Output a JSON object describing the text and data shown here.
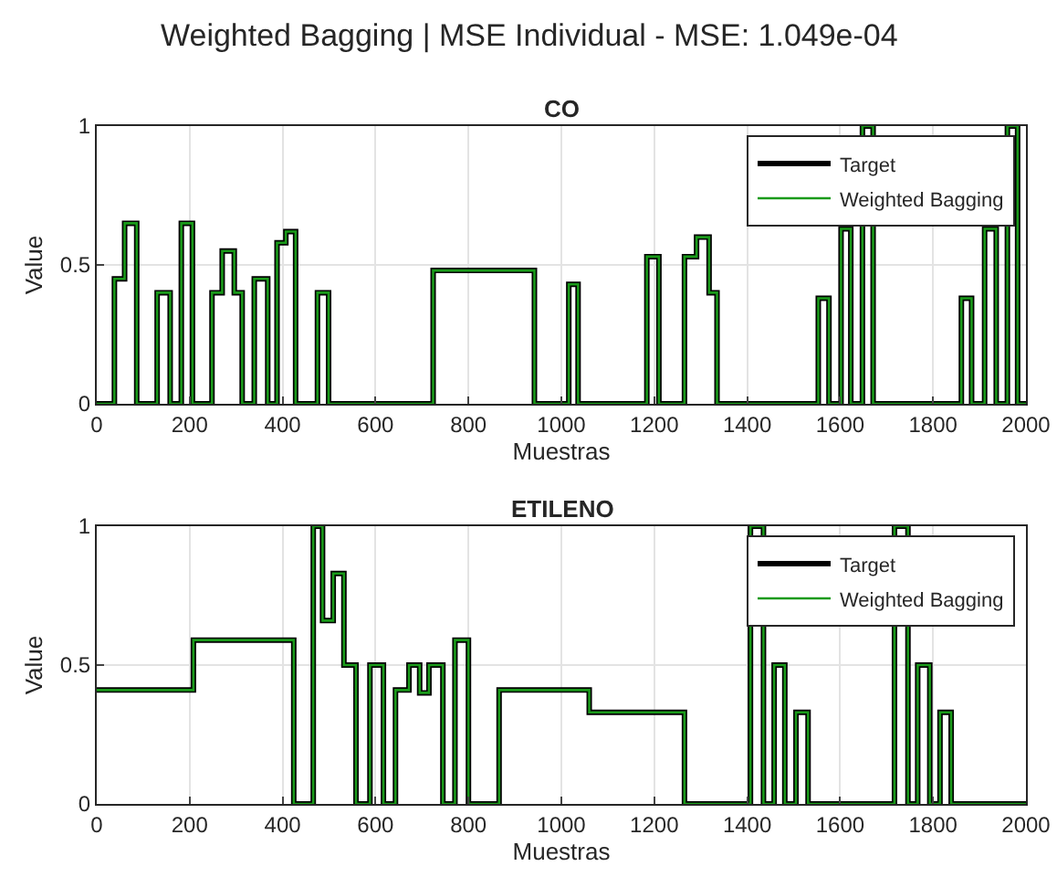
{
  "chart_data": [
    {
      "type": "step",
      "title": "Weighted Bagging | MSE Individual - MSE: 1.049e-04",
      "subtitle": "CO",
      "xlabel": "Muestras",
      "ylabel": "Value",
      "x": [
        0,
        38,
        60,
        86,
        130,
        158,
        182,
        206,
        248,
        270,
        296,
        313,
        339,
        368,
        388,
        407,
        428,
        475,
        499,
        724,
        942,
        1016,
        1036,
        1184,
        1210,
        1265,
        1291,
        1318,
        1335,
        1553,
        1576,
        1602,
        1623,
        1648,
        1671,
        1861,
        1883,
        1911,
        1936,
        1960,
        1982,
        2000
      ],
      "series": [
        {
          "name": "Target",
          "color": "#000000",
          "values": [
            0,
            0.45,
            0.65,
            0,
            0.4,
            0,
            0.65,
            0,
            0.4,
            0.55,
            0.4,
            0,
            0.45,
            0,
            0.58,
            0.62,
            0,
            0.4,
            0,
            0.48,
            0,
            0.43,
            0,
            0.53,
            0,
            0.53,
            0.6,
            0.4,
            0,
            0.38,
            0,
            0.63,
            0,
            1,
            0,
            0.38,
            0,
            0.63,
            0,
            1,
            0,
            0
          ]
        },
        {
          "name": "Weighted Bagging",
          "color": "#1a9a1a",
          "values": [
            0,
            0.45,
            0.65,
            0,
            0.4,
            0,
            0.65,
            0,
            0.4,
            0.55,
            0.4,
            0,
            0.45,
            0,
            0.58,
            0.62,
            0,
            0.4,
            0,
            0.48,
            0,
            0.43,
            0,
            0.53,
            0,
            0.53,
            0.6,
            0.4,
            0,
            0.38,
            0,
            0.63,
            0,
            1,
            0,
            0.38,
            0,
            0.63,
            0,
            1,
            0,
            0
          ]
        }
      ],
      "xlim": [
        0,
        2000
      ],
      "xticks": [
        0,
        200,
        400,
        600,
        800,
        1000,
        1200,
        1400,
        1600,
        1800,
        2000
      ],
      "ylim": [
        0,
        1
      ],
      "yticks": [
        0,
        0.5,
        1
      ],
      "grid": true,
      "legend": "top right",
      "marker": "none",
      "line_style": "solid"
    },
    {
      "type": "step",
      "title": "ETILENO",
      "xlabel": "Muestras",
      "ylabel": "Value",
      "x": [
        0,
        208,
        424,
        466,
        486,
        509,
        532,
        558,
        588,
        617,
        643,
        672,
        695,
        715,
        745,
        771,
        800,
        866,
        1060,
        1265,
        1407,
        1435,
        1458,
        1481,
        1505,
        1531,
        1717,
        1746,
        1767,
        1793,
        1815,
        1839,
        2000
      ],
      "series": [
        {
          "name": "Target",
          "color": "#000000",
          "values": [
            0.41,
            0.59,
            0,
            1,
            0.66,
            0.83,
            0.5,
            0,
            0.5,
            0,
            0.41,
            0.5,
            0.4,
            0.5,
            0,
            0.59,
            0,
            0.41,
            0.33,
            0,
            1,
            0,
            0.5,
            0,
            0.33,
            0,
            1,
            0,
            0.5,
            0,
            0.33,
            0,
            0
          ]
        },
        {
          "name": "Weighted Bagging",
          "color": "#1a9a1a",
          "values": [
            0.41,
            0.59,
            0,
            1,
            0.66,
            0.83,
            0.5,
            0,
            0.5,
            0,
            0.41,
            0.5,
            0.4,
            0.5,
            0,
            0.59,
            0,
            0.41,
            0.33,
            0,
            1,
            0,
            0.5,
            0,
            0.33,
            0,
            1,
            0,
            0.5,
            0,
            0.33,
            0,
            0
          ]
        }
      ],
      "xlim": [
        0,
        2000
      ],
      "xticks": [
        0,
        200,
        400,
        600,
        800,
        1000,
        1200,
        1400,
        1600,
        1800,
        2000
      ],
      "ylim": [
        0,
        1
      ],
      "yticks": [
        0,
        0.5,
        1
      ],
      "grid": true,
      "legend": "top right",
      "marker": "none",
      "line_style": "solid"
    }
  ]
}
